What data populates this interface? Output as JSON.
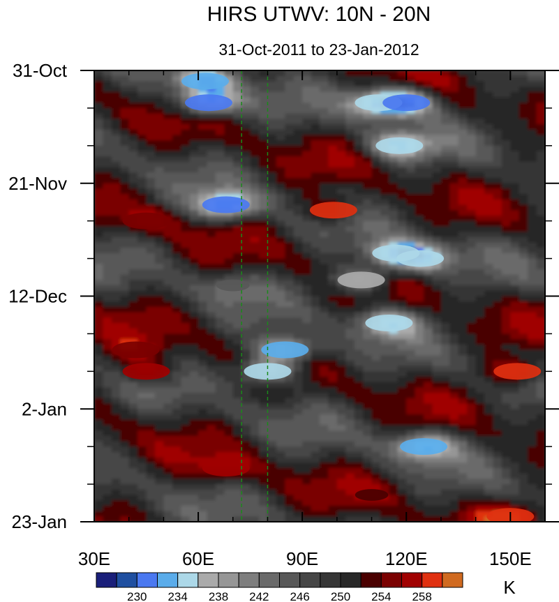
{
  "chart_data": {
    "type": "heatmap",
    "title": "HIRS UTWV: 10N - 20N",
    "subtitle": "31-Oct-2011 to 23-Jan-2012",
    "xlabel": "",
    "ylabel": "",
    "x_ticks": [
      {
        "value": 30,
        "label": "30E"
      },
      {
        "value": 60,
        "label": "60E"
      },
      {
        "value": 90,
        "label": "90E"
      },
      {
        "value": 120,
        "label": "120E"
      },
      {
        "value": 150,
        "label": "150E"
      }
    ],
    "xlim": [
      30,
      160
    ],
    "y_ticks": [
      {
        "value": 0,
        "label": "31-Oct"
      },
      {
        "value": 21,
        "label": "21-Nov"
      },
      {
        "value": 42,
        "label": "12-Dec"
      },
      {
        "value": 63,
        "label": "2-Jan"
      },
      {
        "value": 84,
        "label": "23-Jan"
      }
    ],
    "ylim": [
      0,
      84
    ],
    "reference_lines": [
      {
        "x": 72.5,
        "style": "dashed",
        "color": "#1a8a1a"
      },
      {
        "x": 80,
        "style": "dashed",
        "color": "#1a8a1a"
      }
    ],
    "colorbar": {
      "unit": "K",
      "tick_labels": [
        "230",
        "234",
        "238",
        "242",
        "246",
        "250",
        "254",
        "258"
      ],
      "levels": [
        228,
        230,
        232,
        234,
        236,
        238,
        240,
        242,
        244,
        246,
        248,
        250,
        252,
        254,
        256,
        258,
        260
      ],
      "colors": [
        "#1a1f7a",
        "#1f4fa0",
        "#4a78f0",
        "#5aacea",
        "#acd8e8",
        "#aaaaaa",
        "#969696",
        "#7e7e7e",
        "#6a6a6a",
        "#585858",
        "#464646",
        "#363636",
        "#282828",
        "#4a0000",
        "#7a0000",
        "#a00000",
        "#e03010",
        "#d06a20"
      ]
    },
    "features": [
      {
        "lon": 62,
        "day": 2,
        "value": 233
      },
      {
        "lon": 63,
        "day": 6,
        "value": 231
      },
      {
        "lon": 112,
        "day": 6,
        "value": 234
      },
      {
        "lon": 120,
        "day": 6,
        "value": 231
      },
      {
        "lon": 118,
        "day": 14,
        "value": 234
      },
      {
        "lon": 68,
        "day": 25,
        "value": 231
      },
      {
        "lon": 99,
        "day": 26,
        "value": 258
      },
      {
        "lon": 45,
        "day": 28,
        "value": 255
      },
      {
        "lon": 117,
        "day": 34,
        "value": 234
      },
      {
        "lon": 124,
        "day": 35,
        "value": 235
      },
      {
        "lon": 107,
        "day": 39,
        "value": 236
      },
      {
        "lon": 70,
        "day": 40,
        "value": 245
      },
      {
        "lon": 115,
        "day": 47,
        "value": 235
      },
      {
        "lon": 85,
        "day": 52,
        "value": 232
      },
      {
        "lon": 80,
        "day": 56,
        "value": 234
      },
      {
        "lon": 45,
        "day": 56,
        "value": 257
      },
      {
        "lon": 152,
        "day": 56,
        "value": 259
      },
      {
        "lon": 42,
        "day": 52,
        "value": 255
      },
      {
        "lon": 125,
        "day": 70,
        "value": 233
      },
      {
        "lon": 68,
        "day": 74,
        "value": 256
      },
      {
        "lon": 150,
        "day": 83,
        "value": 258
      },
      {
        "lon": 110,
        "day": 79,
        "value": 252
      }
    ]
  }
}
